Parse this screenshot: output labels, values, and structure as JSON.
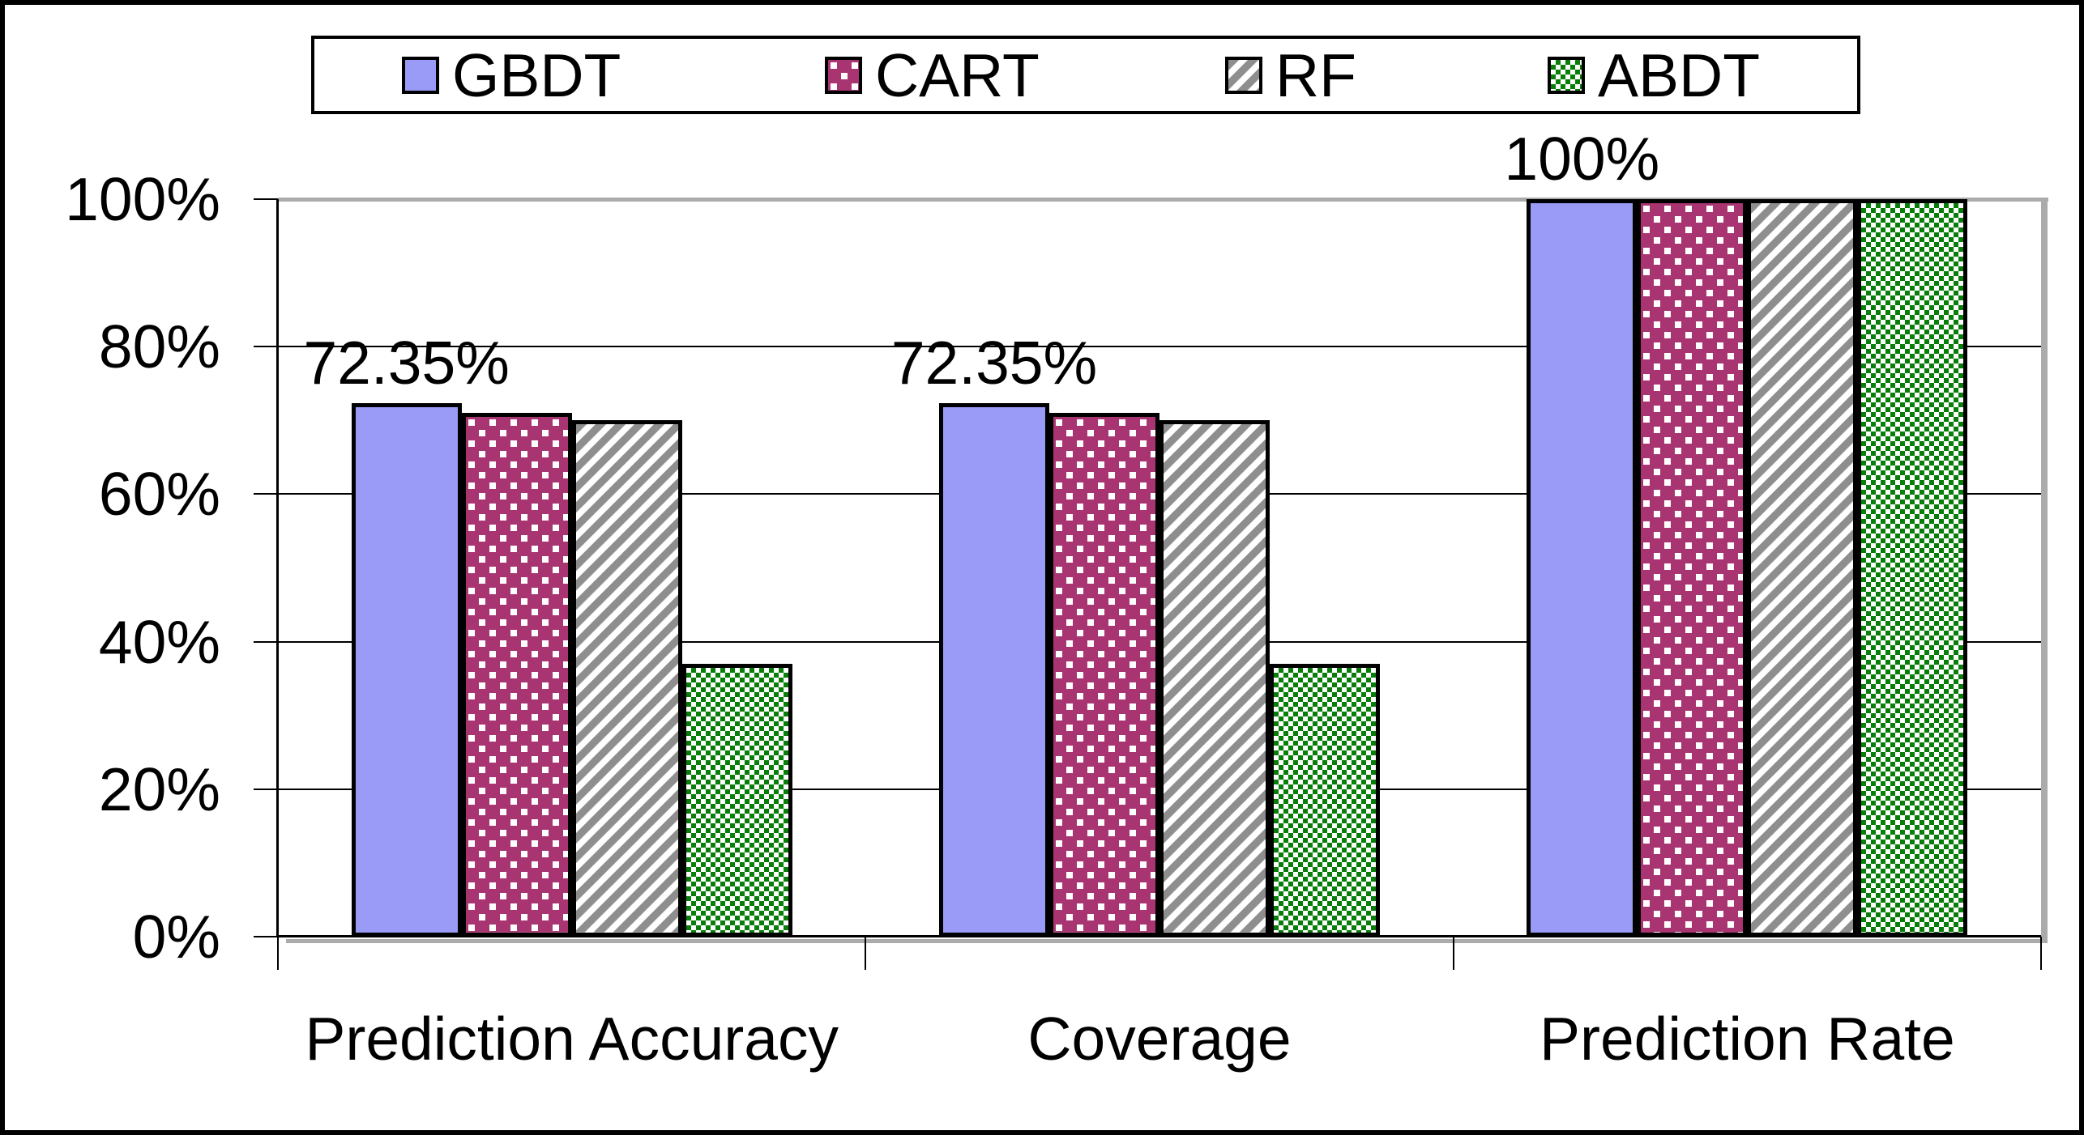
{
  "chart_data": {
    "type": "bar",
    "title": "",
    "xlabel": "",
    "ylabel": "",
    "categories": [
      "Prediction Accuracy",
      "Coverage",
      "Prediction Rate"
    ],
    "series": [
      {
        "name": "GBDT",
        "values": [
          72.35,
          72.35,
          100
        ],
        "color": "#9A9AF7",
        "pattern": "solid"
      },
      {
        "name": "CART",
        "values": [
          71,
          71,
          100
        ],
        "color": "#A83572",
        "pattern": "dots"
      },
      {
        "name": "RF",
        "values": [
          70,
          70,
          100
        ],
        "color": "#8E8E8E",
        "pattern": "diagonal-stripes"
      },
      {
        "name": "ABDT",
        "values": [
          37,
          37,
          100
        ],
        "color": "#077E07",
        "pattern": "checker"
      }
    ],
    "bar_labels": [
      {
        "text": "72.35%",
        "category": 0
      },
      {
        "text": "72.35%",
        "category": 1
      },
      {
        "text": "100%",
        "category": 2
      }
    ],
    "y_axis": {
      "min": 0,
      "max": 100,
      "tick_values": [
        100,
        80,
        60,
        40,
        20,
        0
      ],
      "tick_labels": [
        "100%",
        "80%",
        "60%",
        "40%",
        "20%",
        "0%"
      ]
    },
    "grid": true,
    "legend_position": "top",
    "colors": {
      "axis": "#000000",
      "gridline": "#000000",
      "plot_border_shadow": "#ABABAB",
      "background": "#FFFFFF",
      "text": "#000000",
      "pattern_background": "#FFFFFF"
    }
  }
}
